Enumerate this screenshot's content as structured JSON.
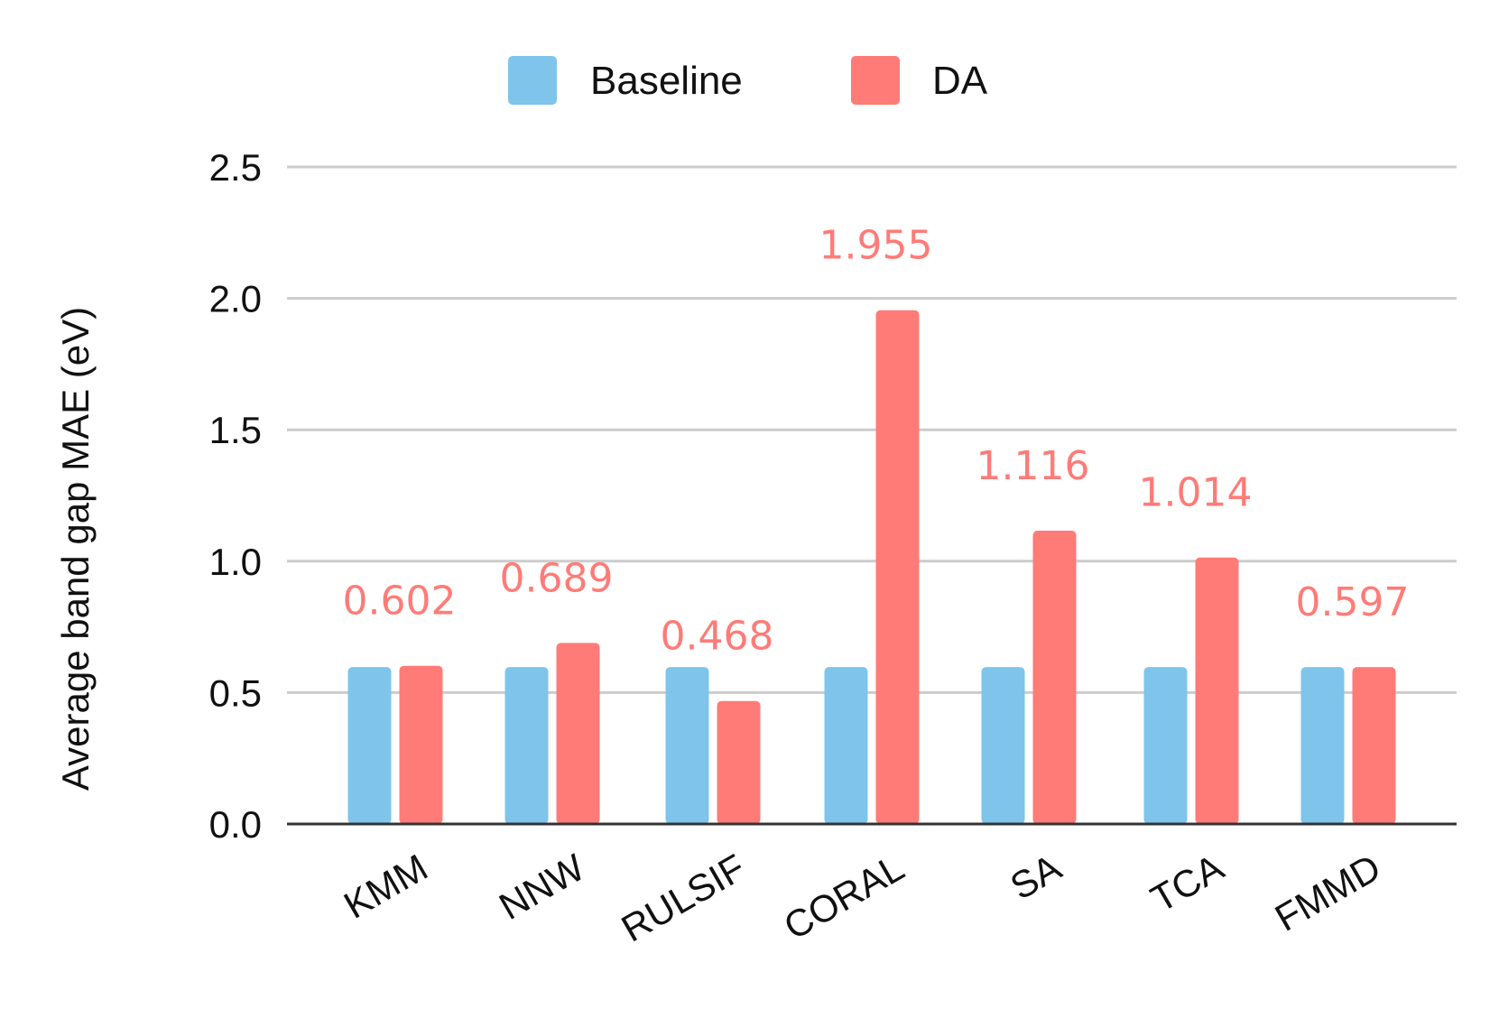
{
  "chart_data": {
    "type": "bar",
    "title": "",
    "xlabel": "",
    "ylabel": "Average band gap MAE (eV)",
    "ylim": [
      0,
      2.5
    ],
    "yticks": [
      0.0,
      0.5,
      1.0,
      1.5,
      2.0,
      2.5
    ],
    "ytick_labels": [
      "0.0",
      "0.5",
      "1.0",
      "1.5",
      "2.0",
      "2.5"
    ],
    "grid": true,
    "legend_position": "top-center",
    "categories": [
      "KMM",
      "NNW",
      "RULSIF",
      "CORAL",
      "SA",
      "TCA",
      "FMMD"
    ],
    "series": [
      {
        "name": "Baseline",
        "color": "#7fc4eb",
        "values": [
          0.597,
          0.597,
          0.597,
          0.597,
          0.597,
          0.597,
          0.597
        ]
      },
      {
        "name": "DA",
        "color": "#ff7b77",
        "values": [
          0.602,
          0.689,
          0.468,
          1.955,
          1.116,
          1.014,
          0.597
        ],
        "data_labels": [
          "0.602",
          "0.689",
          "0.468",
          "1.955",
          "1.116",
          "1.014",
          "0.597"
        ]
      }
    ]
  }
}
